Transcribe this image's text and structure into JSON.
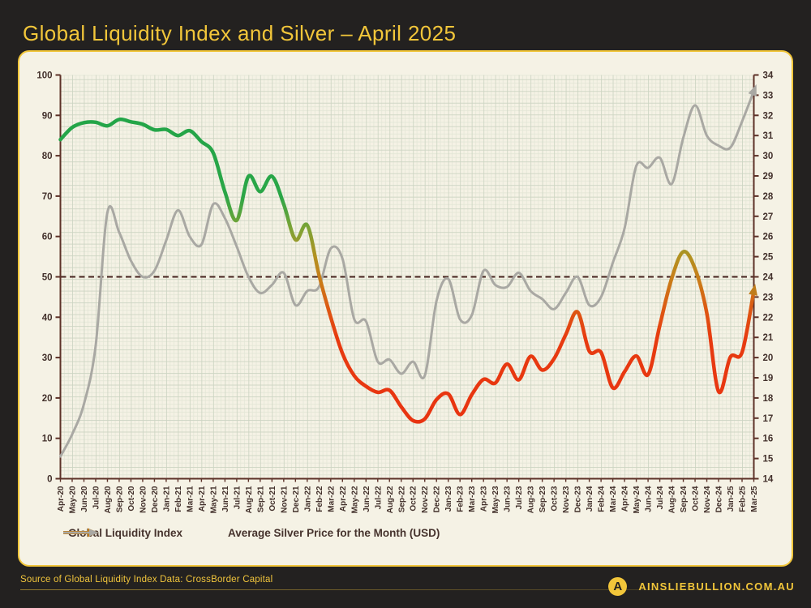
{
  "header": {
    "title": "Global Liquidity Index and Silver – April 2025"
  },
  "footer": {
    "source_note": "Source of Global Liquidity Index Data: CrossBorder Capital",
    "website": "AINSLIEBULLION.COM.AU",
    "logo_letter": "A"
  },
  "colors": {
    "background": "#232120",
    "panel_bg": "#f5f2e5",
    "accent_gold": "#f2c63a",
    "axis_brown": "#5d3128",
    "tick_text": "#42302b",
    "grid_minor": "#e3e6d6",
    "grid_major": "#ccd4c2",
    "silver_line": "#a9a8a3",
    "reference_dash": "#44211c",
    "legend_text": "#46332d",
    "liquidity_arrow": "#bf7c1b"
  },
  "chart_data": {
    "type": "line",
    "title": "Global Liquidity Index and Silver – April 2025",
    "categories": [
      "Apr-20",
      "May-20",
      "Jun-20",
      "Jul-20",
      "Aug-20",
      "Sep-20",
      "Oct-20",
      "Nov-20",
      "Dec-20",
      "Jan-21",
      "Feb-21",
      "Mar-21",
      "Apr-21",
      "May-21",
      "Jun-21",
      "Jul-21",
      "Aug-21",
      "Sep-21",
      "Oct-21",
      "Nov-21",
      "Dec-21",
      "Jan-22",
      "Feb-22",
      "Mar-22",
      "Apr-22",
      "May-22",
      "Jun-22",
      "Jul-22",
      "Aug-22",
      "Sep-22",
      "Oct-22",
      "Nov-22",
      "Dec-22",
      "Jan-23",
      "Feb-23",
      "Mar-23",
      "Apr-23",
      "May-23",
      "Jun-23",
      "Jul-23",
      "Aug-23",
      "Sep-23",
      "Oct-23",
      "Nov-23",
      "Dec-23",
      "Jan-24",
      "Feb-24",
      "Mar-24",
      "Apr-24",
      "May-24",
      "Jun-24",
      "Jul-24",
      "Aug-24",
      "Sep-24",
      "Oct-24",
      "Nov-24",
      "Dec-24",
      "Jan-25",
      "Feb-25",
      "Mar-25"
    ],
    "series": [
      {
        "name": "Global Liquidity Index",
        "axis": "left",
        "style": "value-gradient",
        "arrow_color": "#bf7c1b",
        "width": 4.5,
        "values": [
          84,
          87,
          88.2,
          88.3,
          87.4,
          89,
          88.4,
          87.8,
          86.4,
          86.5,
          85,
          86.2,
          83.5,
          80.7,
          71,
          64,
          74.9,
          71.1,
          74.9,
          68,
          59.2,
          62.8,
          50.5,
          40,
          31,
          25.5,
          22.9,
          21.4,
          21.9,
          17.8,
          14.4,
          14.8,
          19.6,
          21,
          15.9,
          20.8,
          24.6,
          23.7,
          28.4,
          24.5,
          30.3,
          26.9,
          29.7,
          35.7,
          41.3,
          31.6,
          31.3,
          22.5,
          26.5,
          30.4,
          25.8,
          38,
          49.5,
          56.2,
          52,
          41,
          21.6,
          30.1,
          31.3,
          46.5
        ]
      },
      {
        "name": "Average Silver Price for the Month (USD)",
        "axis": "right",
        "color": "#a9a8a3",
        "arrow_color": "#a9a8a3",
        "width": 3,
        "values": [
          15.1,
          16.2,
          17.7,
          20.6,
          27.2,
          26.2,
          24.8,
          24.0,
          24.3,
          25.8,
          27.3,
          26.0,
          25.6,
          27.6,
          26.9,
          25.5,
          24.0,
          23.2,
          23.6,
          24.2,
          22.6,
          23.3,
          23.5,
          25.4,
          24.9,
          21.9,
          21.8,
          19.8,
          19.9,
          19.2,
          19.8,
          19.1,
          22.8,
          23.9,
          21.9,
          22.1,
          24.3,
          23.6,
          23.5,
          24.2,
          23.3,
          22.9,
          22.4,
          23.2,
          24.0,
          22.6,
          23.0,
          24.7,
          26.4,
          29.5,
          29.4,
          29.9,
          28.6,
          30.9,
          32.5,
          31.0,
          30.5,
          30.4,
          31.7,
          33.2
        ]
      }
    ],
    "left_axis": {
      "min": 0,
      "max": 100,
      "tick_step": 10
    },
    "right_axis": {
      "min": 14,
      "max": 34,
      "tick_step": 1
    },
    "reference_line": {
      "axis": "left",
      "value": 50,
      "style": "dashed",
      "color": "#44211c"
    },
    "gradient_stops": [
      {
        "v": 100,
        "c": "#1fa449"
      },
      {
        "v": 70,
        "c": "#2aa647"
      },
      {
        "v": 62,
        "c": "#7da335"
      },
      {
        "v": 55,
        "c": "#b29120"
      },
      {
        "v": 49,
        "c": "#ca7c19"
      },
      {
        "v": 42,
        "c": "#dd5813"
      },
      {
        "v": 35,
        "c": "#e73b10"
      },
      {
        "v": 0,
        "c": "#e92e11"
      }
    ],
    "grid": true,
    "legend_position": "bottom"
  }
}
